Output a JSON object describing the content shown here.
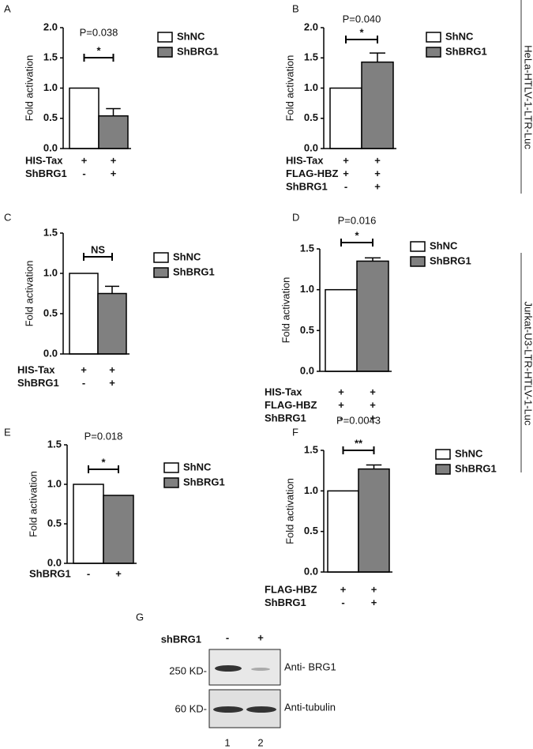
{
  "chart_data": [
    {
      "type": "bar",
      "panel": "A",
      "ylabel": "Fold activation",
      "ylim": [
        0,
        2
      ],
      "yticks": [
        {
          "value": 0,
          "label": "0.0"
        },
        {
          "value": 0.5,
          "label": "0.5"
        },
        {
          "value": 1,
          "label": "1.0"
        },
        {
          "value": 1.5,
          "label": "1.5"
        },
        {
          "value": 2,
          "label": "2.0"
        }
      ],
      "series": [
        {
          "name": "ShNC",
          "color": "#ffffff",
          "values": [
            1.0,
            null
          ],
          "errors": [
            null,
            null
          ]
        },
        {
          "name": "ShBRG1",
          "color": "#808080",
          "values": [
            null,
            0.54
          ],
          "errors": [
            null,
            0.12
          ]
        }
      ],
      "annotation": "P=0.038",
      "significance": "*",
      "conditions": [
        {
          "label": "HIS-Tax",
          "marks": [
            "+",
            "+"
          ]
        },
        {
          "label": "ShBRG1",
          "marks": [
            "-",
            "+"
          ]
        }
      ]
    },
    {
      "type": "bar",
      "panel": "B",
      "ylabel": "Fold activation",
      "ylim": [
        0,
        2
      ],
      "yticks": [
        {
          "value": 0,
          "label": "0.0"
        },
        {
          "value": 0.5,
          "label": "0.5"
        },
        {
          "value": 1,
          "label": "1.0"
        },
        {
          "value": 1.5,
          "label": "1.5"
        },
        {
          "value": 2,
          "label": "2.0"
        }
      ],
      "series": [
        {
          "name": "ShNC",
          "color": "#ffffff",
          "values": [
            1.0,
            null
          ],
          "errors": [
            null,
            null
          ]
        },
        {
          "name": "ShBRG1",
          "color": "#808080",
          "values": [
            null,
            1.43
          ],
          "errors": [
            null,
            0.15
          ]
        }
      ],
      "annotation": "P=0.040",
      "significance": "*",
      "conditions": [
        {
          "label": "HIS-Tax",
          "marks": [
            "+",
            "+"
          ]
        },
        {
          "label": "FLAG-HBZ",
          "marks": [
            "+",
            "+"
          ]
        },
        {
          "label": "ShBRG1",
          "marks": [
            "-",
            "+"
          ]
        }
      ]
    },
    {
      "type": "bar",
      "panel": "C",
      "ylabel": "Fold activation",
      "ylim": [
        0,
        1.5
      ],
      "yticks": [
        {
          "value": 0,
          "label": "0.0"
        },
        {
          "value": 0.5,
          "label": "0.5"
        },
        {
          "value": 1,
          "label": "1.0"
        },
        {
          "value": 1.5,
          "label": "1.5"
        }
      ],
      "series": [
        {
          "name": "ShNC",
          "color": "#ffffff",
          "values": [
            1.0,
            null
          ],
          "errors": [
            null,
            null
          ]
        },
        {
          "name": "ShBRG1",
          "color": "#808080",
          "values": [
            null,
            0.75
          ],
          "errors": [
            null,
            0.09
          ]
        }
      ],
      "significance": "NS",
      "conditions": [
        {
          "label": "HIS-Tax",
          "marks": [
            "+",
            "+"
          ]
        },
        {
          "label": "ShBRG1",
          "marks": [
            "-",
            "+"
          ]
        }
      ]
    },
    {
      "type": "bar",
      "panel": "D",
      "ylabel": "Fold activation",
      "ylim": [
        0,
        1.5
      ],
      "yticks": [
        {
          "value": 0,
          "label": "0.0"
        },
        {
          "value": 0.5,
          "label": "0.5"
        },
        {
          "value": 1,
          "label": "1.0"
        },
        {
          "value": 1.5,
          "label": "1.5"
        }
      ],
      "series": [
        {
          "name": "ShNC",
          "color": "#ffffff",
          "values": [
            1.0,
            null
          ],
          "errors": [
            null,
            null
          ]
        },
        {
          "name": "ShBRG1",
          "color": "#808080",
          "values": [
            null,
            1.35
          ],
          "errors": [
            null,
            0.04
          ]
        }
      ],
      "annotation": "P=0.016",
      "significance": "*",
      "conditions": [
        {
          "label": "HIS-Tax",
          "marks": [
            "+",
            "+"
          ]
        },
        {
          "label": "FLAG-HBZ",
          "marks": [
            "+",
            "+"
          ]
        },
        {
          "label": "ShBRG1",
          "marks": [
            "-",
            "+"
          ]
        }
      ]
    },
    {
      "type": "bar",
      "panel": "E",
      "ylabel": "Fold activation",
      "ylim": [
        0,
        1.5
      ],
      "yticks": [
        {
          "value": 0,
          "label": "0.0"
        },
        {
          "value": 0.5,
          "label": "0.5"
        },
        {
          "value": 1,
          "label": "1.0"
        },
        {
          "value": 1.5,
          "label": "1.5"
        }
      ],
      "series": [
        {
          "name": "ShNC",
          "color": "#ffffff",
          "values": [
            1.0,
            null
          ],
          "errors": [
            null,
            null
          ]
        },
        {
          "name": "ShBRG1",
          "color": "#808080",
          "values": [
            null,
            0.86
          ],
          "errors": [
            null,
            null
          ]
        }
      ],
      "annotation": "P=0.018",
      "significance": "*",
      "conditions": [
        {
          "label": "ShBRG1",
          "marks": [
            "-",
            "+"
          ]
        }
      ]
    },
    {
      "type": "bar",
      "panel": "F",
      "ylabel": "Fold activation",
      "ylim": [
        0,
        1.5
      ],
      "yticks": [
        {
          "value": 0,
          "label": "0.0"
        },
        {
          "value": 0.5,
          "label": "0.5"
        },
        {
          "value": 1,
          "label": "1.0"
        },
        {
          "value": 1.5,
          "label": "1.5"
        }
      ],
      "series": [
        {
          "name": "ShNC",
          "color": "#ffffff",
          "values": [
            1.0,
            null
          ],
          "errors": [
            null,
            null
          ]
        },
        {
          "name": "ShBRG1",
          "color": "#808080",
          "values": [
            null,
            1.27
          ],
          "errors": [
            null,
            0.05
          ]
        }
      ],
      "annotation": "P=0.0043",
      "significance": "**",
      "conditions": [
        {
          "label": "FLAG-HBZ",
          "marks": [
            "+",
            "+"
          ]
        },
        {
          "label": "ShBRG1",
          "marks": [
            "-",
            "+"
          ]
        }
      ]
    }
  ],
  "side_labels": [
    "HeLa-HTLV-1-LTR-Luc",
    "Jurkat-U3-LTR-HTLV-1-Luc"
  ],
  "blot": {
    "panel": "G",
    "header_label": "shBRG1",
    "lanes": [
      "-",
      "+"
    ],
    "lane_numbers": [
      "1",
      "2"
    ],
    "rows": [
      {
        "marker": "250 KD-",
        "antibody": "Anti- BRG1"
      },
      {
        "marker": "60 KD-",
        "antibody": "Anti-tubulin"
      }
    ]
  }
}
